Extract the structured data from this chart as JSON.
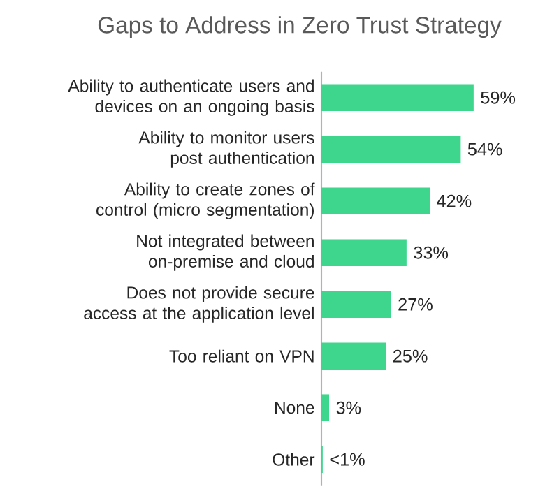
{
  "chart_data": {
    "type": "bar",
    "orientation": "horizontal",
    "title": "Gaps to Address in Zero Trust Strategy",
    "categories": [
      "Ability to authenticate users and devices on an ongoing basis",
      "Ability to monitor users post authentication",
      "Ability to create zones of control (micro segmentation)",
      "Not integrated between on-premise and cloud",
      "Does not provide secure access at the application level",
      "Too reliant on VPN",
      "None",
      "Other"
    ],
    "values": [
      59,
      54,
      42,
      33,
      27,
      25,
      3,
      0.5
    ],
    "value_labels": [
      "59%",
      "54%",
      "42%",
      "33%",
      "27%",
      "25%",
      "3%",
      "<1%"
    ],
    "color": "#3dd68c"
  }
}
